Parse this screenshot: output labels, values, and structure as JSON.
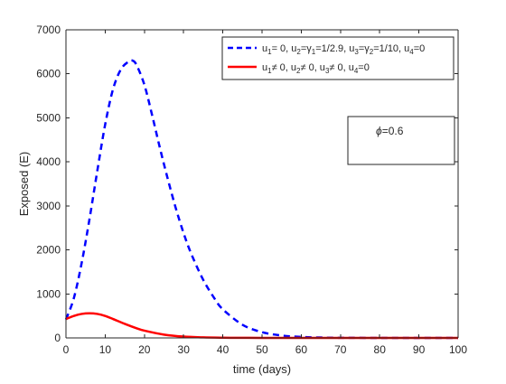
{
  "chart_data": {
    "type": "line",
    "title": "",
    "xlabel": "time (days)",
    "ylabel": "Exposed (E)",
    "xlim": [
      0,
      100
    ],
    "ylim": [
      0,
      7000
    ],
    "xticks": [
      0,
      10,
      20,
      30,
      40,
      50,
      60,
      70,
      80,
      90,
      100
    ],
    "yticks": [
      0,
      1000,
      2000,
      3000,
      4000,
      5000,
      6000,
      7000
    ],
    "grid": false,
    "legend_position": "top-right",
    "series": [
      {
        "name": "u1 = 0, u2 = γ1 = 1/2.9, u3 = γ2 = 1/10, u4 = 0",
        "color": "#0000ff",
        "style": "dashed",
        "x": [
          0,
          2,
          4,
          6,
          8,
          10,
          12,
          14,
          16,
          17,
          18,
          20,
          22,
          24,
          26,
          28,
          30,
          32,
          35,
          38,
          40,
          45,
          50,
          55,
          60,
          65,
          70,
          80,
          90,
          100
        ],
        "y": [
          420,
          900,
          1700,
          2700,
          3800,
          4850,
          5650,
          6100,
          6280,
          6300,
          6200,
          5750,
          5050,
          4300,
          3600,
          2950,
          2380,
          1900,
          1320,
          880,
          650,
          300,
          130,
          55,
          22,
          9,
          3,
          0.5,
          0,
          0
        ]
      },
      {
        "name": "u1 ≠ 0, u2 ≠ 0, u3 ≠ 0, u4 = 0",
        "color": "#ff0000",
        "style": "solid",
        "x": [
          0,
          2,
          4,
          6,
          8,
          10,
          12,
          15,
          18,
          20,
          25,
          30,
          35,
          40,
          45,
          50,
          60,
          70,
          80,
          90,
          100
        ],
        "y": [
          430,
          500,
          545,
          560,
          545,
          500,
          430,
          320,
          220,
          165,
          75,
          30,
          12,
          5,
          2,
          1,
          0,
          0,
          0,
          0,
          0
        ]
      }
    ],
    "annotations": [
      {
        "text": "ϕ=0.6"
      }
    ]
  },
  "legend": {
    "entry1": {
      "p1": "u",
      "s1": "1",
      "p2": "= 0, u",
      "s2": "2",
      "p3": "=γ",
      "s3": "1",
      "p4": "=1/2.9, u",
      "s4": "3",
      "p5": "=γ",
      "s5": "2",
      "p6": "=1/10, u",
      "s6": "4",
      "p7": "=0"
    },
    "entry2": {
      "p1": "u",
      "s1": "1",
      "p2": "≠ 0, u",
      "s2": "2",
      "p3": "≠ 0, u",
      "s3": "3",
      "p4": "≠ 0, u",
      "s4": "4",
      "p5": "=0"
    }
  },
  "annotation": {
    "symbol": "ϕ",
    "value": "=0.6"
  }
}
